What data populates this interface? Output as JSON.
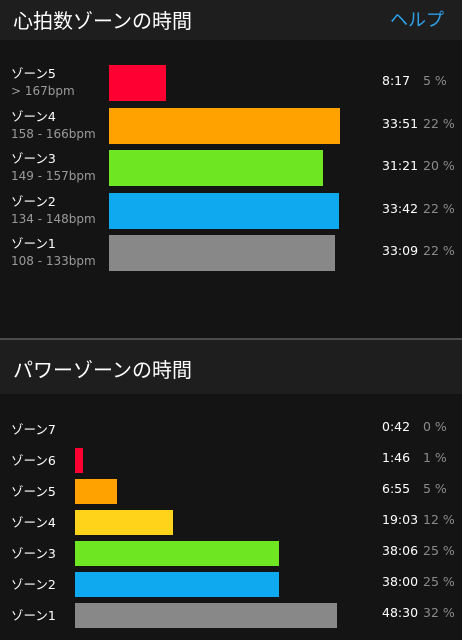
{
  "heart_rate": {
    "title": "心拍数ゾーンの時間",
    "help_label": "ヘルプ",
    "zones": [
      {
        "name": "ゾーン5",
        "range": "> 167bpm",
        "time": "8:17",
        "percent": "5 %",
        "fraction": 0.245,
        "color": "#ff0033"
      },
      {
        "name": "ゾーン4",
        "range": "158 - 166bpm",
        "time": "33:51",
        "percent": "22 %",
        "fraction": 1.0,
        "color": "#ffa200"
      },
      {
        "name": "ゾーン3",
        "range": "149 - 157bpm",
        "time": "31:21",
        "percent": "20 %",
        "fraction": 0.926,
        "color": "#6ee621"
      },
      {
        "name": "ゾーン2",
        "range": "134 - 148bpm",
        "time": "33:42",
        "percent": "22 %",
        "fraction": 0.996,
        "color": "#0ea9ee"
      },
      {
        "name": "ゾーン1",
        "range": "108 - 133bpm",
        "time": "33:09",
        "percent": "22 %",
        "fraction": 0.98,
        "color": "#888888"
      }
    ]
  },
  "power": {
    "title": "パワーゾーンの時間",
    "zones": [
      {
        "name": "ゾーン7",
        "time": "0:42",
        "percent": "0 %",
        "fraction": 0.0,
        "color": "#ff0033"
      },
      {
        "name": "ゾーン6",
        "time": "1:46",
        "percent": "1 %",
        "fraction": 0.032,
        "color": "#ff0033"
      },
      {
        "name": "ゾーン5",
        "time": "6:55",
        "percent": "5 %",
        "fraction": 0.16,
        "color": "#ffa200"
      },
      {
        "name": "ゾーン4",
        "time": "19:03",
        "percent": "12 %",
        "fraction": 0.375,
        "color": "#ffd31a"
      },
      {
        "name": "ゾーン3",
        "time": "38:06",
        "percent": "25 %",
        "fraction": 0.78,
        "color": "#6ee621"
      },
      {
        "name": "ゾーン2",
        "time": "38:00",
        "percent": "25 %",
        "fraction": 0.78,
        "color": "#0ea9ee"
      },
      {
        "name": "ゾーン1",
        "time": "48:30",
        "percent": "32 %",
        "fraction": 1.0,
        "color": "#888888"
      }
    ]
  }
}
